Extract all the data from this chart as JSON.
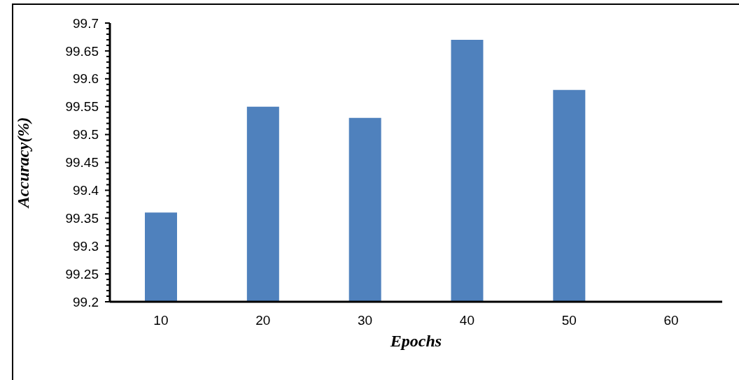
{
  "chart_data": {
    "type": "bar",
    "xlabel": "Epochs",
    "ylabel": "Accuracy(%)",
    "categories": [
      "10",
      "20",
      "30",
      "40",
      "50",
      "60"
    ],
    "values": [
      99.36,
      99.55,
      99.53,
      99.67,
      99.58,
      null
    ],
    "color": "#4f81bd",
    "ylim": [
      99.2,
      99.7
    ],
    "yticks": [
      99.2,
      {
        "value": 99.21,
        "label": null
      },
      {
        "value": 99.22,
        "label": null
      },
      {
        "value": 99.23,
        "label": null
      },
      {
        "value": 99.24,
        "label": null
      },
      99.25,
      {
        "value": 99.26,
        "label": null
      },
      {
        "value": 99.27,
        "label": null
      },
      {
        "value": 99.28,
        "label": null
      },
      {
        "value": 99.29,
        "label": null
      },
      99.3,
      {
        "value": 99.31,
        "label": null
      },
      {
        "value": 99.32,
        "label": null
      },
      {
        "value": 99.33,
        "label": null
      },
      {
        "value": 99.34,
        "label": null
      },
      99.35,
      {
        "value": 99.36,
        "label": null
      },
      {
        "value": 99.37,
        "label": null
      },
      {
        "value": 99.38,
        "label": null
      },
      {
        "value": 99.39,
        "label": null
      },
      99.4,
      {
        "value": 99.41,
        "label": null
      },
      {
        "value": 99.42,
        "label": null
      },
      {
        "value": 99.43,
        "label": null
      },
      {
        "value": 99.44,
        "label": null
      },
      99.45,
      {
        "value": 99.46,
        "label": null
      },
      {
        "value": 99.47,
        "label": null
      },
      {
        "value": 99.48,
        "label": null
      },
      {
        "value": 99.49,
        "label": null
      },
      99.5,
      {
        "value": 99.51,
        "label": null
      },
      {
        "value": 99.52,
        "label": null
      },
      {
        "value": 99.53,
        "label": null
      },
      {
        "value": 99.54,
        "label": null
      },
      99.55,
      {
        "value": 99.56,
        "label": null
      },
      {
        "value": 99.57,
        "label": null
      },
      {
        "value": 99.58,
        "label": null
      },
      {
        "value": 99.59,
        "label": null
      },
      99.6,
      {
        "value": 99.61,
        "label": null
      },
      {
        "value": 99.62,
        "label": null
      },
      {
        "value": 99.63,
        "label": null
      },
      {
        "value": 99.64,
        "label": null
      },
      99.65,
      {
        "value": 99.66,
        "label": null
      },
      {
        "value": 99.67,
        "label": null
      },
      {
        "value": 99.68,
        "label": null
      },
      {
        "value": 99.69,
        "label": null
      },
      99.7
    ],
    "grid": false,
    "legend": false
  }
}
